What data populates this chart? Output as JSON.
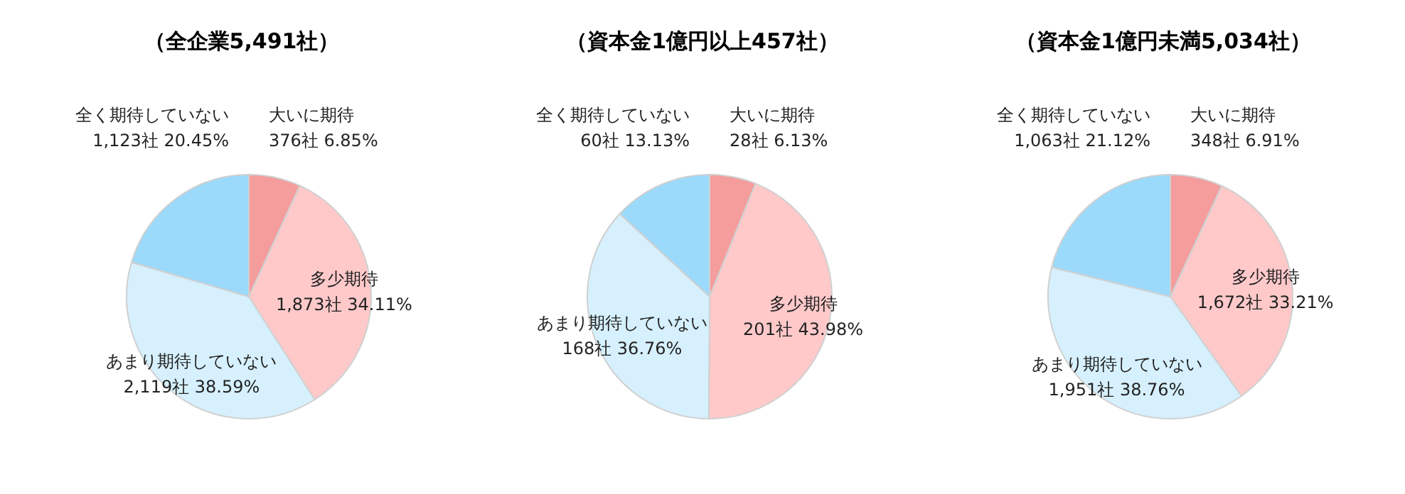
{
  "chart_data": [
    {
      "type": "pie",
      "title": "（全企業5,491社）",
      "categories": [
        "大いに期待",
        "多少期待",
        "あまり期待していない",
        "全く期待していない"
      ],
      "values": [
        376,
        1873,
        2119,
        1123
      ],
      "value_labels": [
        "376社 6.85%",
        "1,873社 34.11%",
        "2,119社 38.59%",
        "1,123社 20.45%"
      ],
      "colors": [
        "#f59c9d",
        "#ffc9ca",
        "#d6f0fd",
        "#9bdafb"
      ]
    },
    {
      "type": "pie",
      "title": "（資本金1億円以上457社）",
      "categories": [
        "大いに期待",
        "多少期待",
        "あまり期待していない",
        "全く期待していない"
      ],
      "values": [
        28,
        201,
        168,
        60
      ],
      "value_labels": [
        "28社 6.13%",
        "201社 43.98%",
        "168社 36.76%",
        "60社 13.13%"
      ],
      "colors": [
        "#f59c9d",
        "#ffc9ca",
        "#d6f0fd",
        "#9bdafb"
      ]
    },
    {
      "type": "pie",
      "title": "（資本金1億円未満5,034社）",
      "categories": [
        "大いに期待",
        "多少期待",
        "あまり期待していない",
        "全く期待していない"
      ],
      "values": [
        348,
        1672,
        1951,
        1063
      ],
      "value_labels": [
        "348社 6.91%",
        "1,672社 33.21%",
        "1,951社 38.76%",
        "1,063社 21.12%"
      ],
      "colors": [
        "#f59c9d",
        "#ffc9ca",
        "#d6f0fd",
        "#9bdafb"
      ]
    }
  ]
}
